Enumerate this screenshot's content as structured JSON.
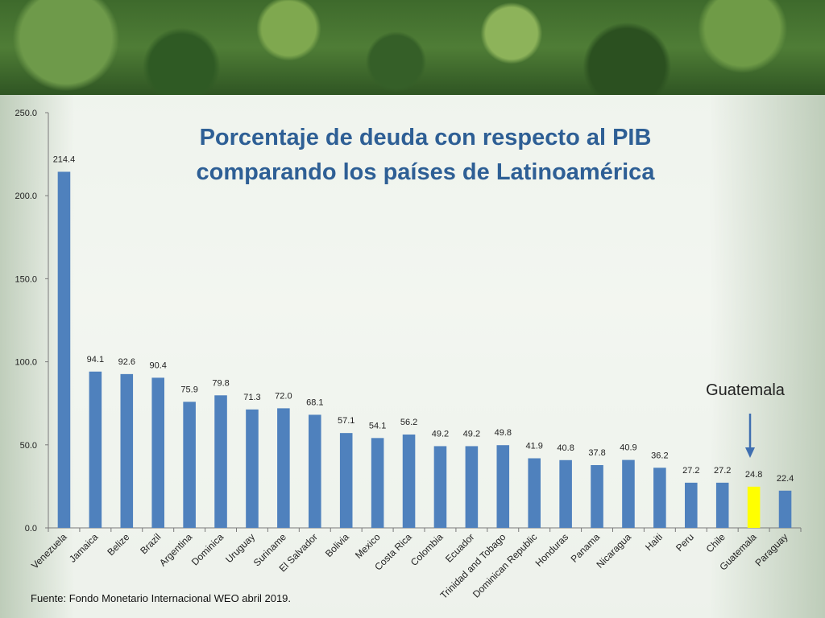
{
  "chart_data": {
    "type": "bar",
    "title": [
      "Porcentaje de deuda con respecto al PIB",
      "comparando los países de Latinoamérica"
    ],
    "categories": [
      "Venezuela",
      "Jamaica",
      "Belize",
      "Brazil",
      "Argentina",
      "Dominica",
      "Uruguay",
      "Suriname",
      "El Salvador",
      "Bolivia",
      "Mexico",
      "Costa Rica",
      "Colombia",
      "Ecuador",
      "Trinidad and Tobago",
      "Dominican Republic",
      "Honduras",
      "Panama",
      "Nicaragua",
      "Haiti",
      "Peru",
      "Chile",
      "Guatemala",
      "Paraguay"
    ],
    "values": [
      214.4,
      94.1,
      92.6,
      90.4,
      75.9,
      79.8,
      71.3,
      72.0,
      68.1,
      57.1,
      54.1,
      56.2,
      49.2,
      49.2,
      49.8,
      41.9,
      40.8,
      37.8,
      40.9,
      36.2,
      27.2,
      27.2,
      24.8,
      22.4
    ],
    "value_labels": [
      "214.4",
      "94.1",
      "92.6",
      "90.4",
      "75.9",
      "79.8",
      "71.3",
      "72.0",
      "68.1",
      "57.1",
      "54.1",
      "56.2",
      "49.2",
      "49.2",
      "49.8",
      "41.9",
      "40.8",
      "37.8",
      "40.9",
      "36.2",
      "27.2",
      "27.2",
      "24.8",
      "22.4"
    ],
    "yticks": [
      "0.0",
      "50.0",
      "100.0",
      "150.0",
      "200.0",
      "250.0"
    ],
    "ylim": [
      0,
      250
    ],
    "highlight": "Guatemala",
    "bar_color": "#4f81bd",
    "highlight_color": "#ffff00",
    "annotation": "Guatemala",
    "arrow_color": "#3f6fb0",
    "source": "Fuente: Fondo Monetario Internacional WEO abril 2019."
  }
}
